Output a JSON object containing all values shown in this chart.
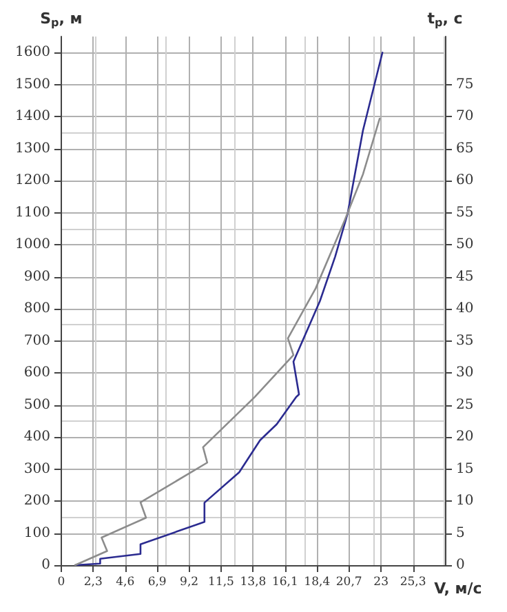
{
  "chart_data": {
    "type": "line",
    "xlabel": "V, м/с",
    "ylabel": "S$_{р}$, м",
    "y2label": "t$_{р}$, с",
    "xlim": [
      0,
      27.6
    ],
    "xticks": [
      0,
      {
        "value": 2.3,
        "label": "2,3"
      },
      {
        "value": 4.6,
        "label": "4,6"
      },
      {
        "value": 6.9,
        "label": "6,9"
      },
      {
        "value": 9.2,
        "label": "9,2"
      },
      {
        "value": 11.5,
        "label": "11,5"
      },
      {
        "value": 13.8,
        "label": "13,8"
      },
      {
        "value": 16.1,
        "label": "16,1"
      },
      {
        "value": 18.4,
        "label": "18,4"
      },
      {
        "value": 20.7,
        "label": "20,7"
      },
      23,
      {
        "value": 25.3,
        "label": "25,3"
      }
    ],
    "ylim": [
      0,
      1650
    ],
    "yticks": [
      0,
      100,
      200,
      300,
      400,
      500,
      600,
      700,
      800,
      900,
      1000,
      1100,
      1200,
      1300,
      1400,
      1500,
      1600
    ],
    "y2lim": [
      0,
      82.5
    ],
    "y2ticks": [
      0,
      5,
      10,
      15,
      20,
      25,
      30,
      35,
      40,
      45,
      50,
      55,
      60,
      65,
      70,
      75
    ],
    "grid": true,
    "marker": "none",
    "line_style": "solid",
    "series": [
      {
        "color": "#2b2b90",
        "x": [
          1.0,
          2.8,
          2.8,
          5.7,
          5.7,
          10.3,
          10.3,
          12.8,
          14.3,
          15.5,
          16.9,
          17.1,
          16.7,
          18.6,
          19.7,
          20.6,
          21.7,
          23.1
        ],
        "values": [
          0,
          5,
          20,
          35,
          65,
          135,
          195,
          290,
          390,
          440,
          525,
          533,
          635,
          824,
          963,
          1098,
          1357,
          1600
        ]
      },
      {
        "color": "#8c8c8c",
        "axis": "y2",
        "x": [
          1.0,
          3.3,
          2.9,
          6.1,
          5.7,
          10.5,
          10.2,
          13.9,
          16.7,
          16.3,
          18.3,
          20.4,
          21.7,
          22.9
        ],
        "values": [
          0,
          2.2,
          4.3,
          7.4,
          9.8,
          16,
          18.4,
          26.2,
          32.8,
          35.4,
          43.2,
          53.9,
          61,
          69.7
        ]
      }
    ]
  }
}
